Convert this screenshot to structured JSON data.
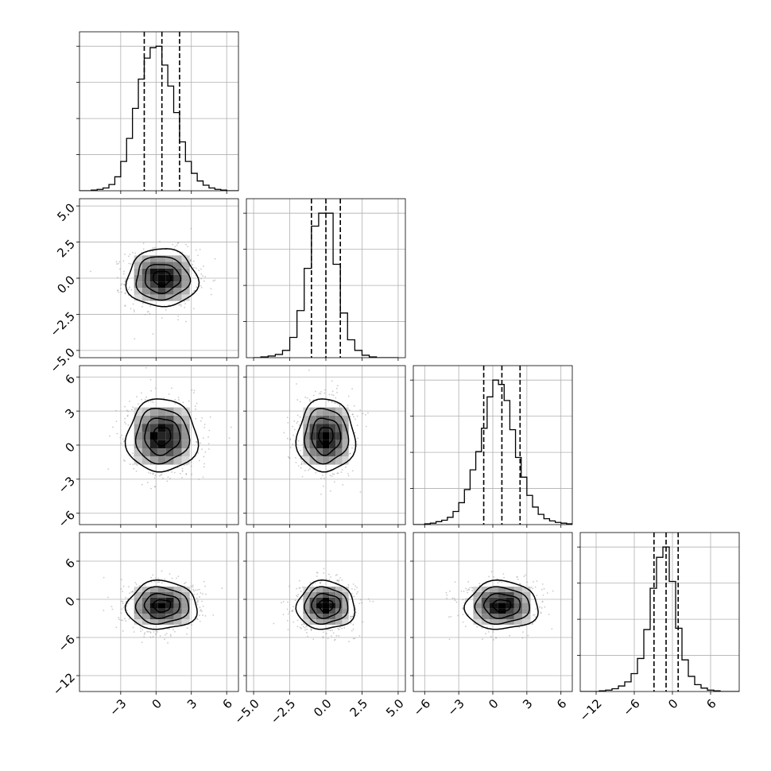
{
  "chart_data": {
    "type": "corner",
    "grid": true,
    "colors": {
      "hist": "#000000",
      "contour": "#000000",
      "points": "#8a8a8a",
      "grid": "#b0b0b0",
      "quantile_line": "#000000"
    },
    "parameters": [
      {
        "index": 0,
        "range": [
          -6.5,
          7.0
        ],
        "ticks": [
          -3,
          0,
          3,
          6
        ],
        "tick_labels": [
          "−3",
          "0",
          "3",
          "6"
        ],
        "mean": 0.5,
        "sd": 1.5,
        "quantiles": [
          -1.0,
          0.5,
          2.0
        ]
      },
      {
        "index": 1,
        "range": [
          -5.5,
          5.5
        ],
        "ticks": [
          -5.0,
          -2.5,
          0.0,
          2.5,
          5.0
        ],
        "tick_labels": [
          "−5.0",
          "−2.5",
          "0.0",
          "2.5",
          "5.0"
        ],
        "mean": 0.0,
        "sd": 1.0,
        "quantiles": [
          -1.0,
          0.0,
          1.0
        ]
      },
      {
        "index": 2,
        "range": [
          -7.0,
          7.0
        ],
        "ticks": [
          -6,
          -3,
          0,
          3,
          6
        ],
        "tick_labels": [
          "−6",
          "−3",
          "0",
          "3",
          "6"
        ],
        "mean": 0.8,
        "sd": 1.6,
        "quantiles": [
          -0.8,
          0.8,
          2.4
        ]
      },
      {
        "index": 3,
        "range": [
          -14.5,
          10.5
        ],
        "ticks": [
          -12,
          -6,
          0,
          6
        ],
        "tick_labels": [
          "−12",
          "−6",
          "0",
          "6"
        ],
        "mean": -1.0,
        "sd": 1.9,
        "quantiles": [
          -2.9,
          -1.0,
          0.9
        ]
      }
    ],
    "histograms": [
      {
        "param": 0,
        "bins": [
          -6.5,
          -6.0,
          -5.5,
          -5.0,
          -4.5,
          -4.0,
          -3.5,
          -3.0,
          -2.5,
          -2.0,
          -1.5,
          -1.0,
          -0.5,
          0.0,
          0.5,
          1.0,
          1.5,
          2.0,
          2.5,
          3.0,
          3.5,
          4.0,
          4.5,
          5.0,
          5.5,
          6.0,
          6.5,
          7.0
        ],
        "counts": [
          0,
          0,
          1,
          2,
          4,
          9,
          20,
          42,
          75,
          118,
          160,
          190,
          205,
          207,
          180,
          150,
          112,
          70,
          42,
          25,
          14,
          8,
          4,
          2,
          1,
          0,
          0
        ]
      },
      {
        "param": 1,
        "bins": [
          -5.0,
          -4.5,
          -4.0,
          -3.5,
          -3.0,
          -2.5,
          -2.0,
          -1.5,
          -1.0,
          -0.5,
          0.0,
          0.5,
          1.0,
          1.5,
          2.0,
          2.5,
          3.0,
          3.5,
          4.0,
          4.5,
          5.0
        ],
        "counts": [
          0,
          1,
          2,
          4,
          9,
          25,
          58,
          110,
          162,
          178,
          178,
          115,
          55,
          22,
          9,
          3,
          1,
          0,
          0,
          0
        ]
      },
      {
        "param": 2,
        "bins": [
          -7.0,
          -6.5,
          -6.0,
          -5.5,
          -5.0,
          -4.5,
          -4.0,
          -3.5,
          -3.0,
          -2.5,
          -2.0,
          -1.5,
          -1.0,
          -0.5,
          0.0,
          0.5,
          1.0,
          1.5,
          2.0,
          2.5,
          3.0,
          3.5,
          4.0,
          4.5,
          5.0,
          5.5,
          6.0,
          6.5,
          7.0
        ],
        "counts": [
          0,
          0,
          1,
          2,
          4,
          6,
          10,
          18,
          30,
          48,
          75,
          100,
          132,
          175,
          198,
          192,
          170,
          130,
          92,
          65,
          40,
          24,
          14,
          8,
          5,
          3,
          2,
          1
        ]
      },
      {
        "param": 3,
        "bins": [
          -14.5,
          -13.5,
          -12.5,
          -11.5,
          -10.5,
          -9.5,
          -8.5,
          -7.5,
          -6.5,
          -5.5,
          -4.5,
          -3.5,
          -2.5,
          -1.5,
          -0.5,
          0.5,
          1.5,
          2.5,
          3.5,
          4.5,
          5.5,
          6.5,
          7.5,
          8.5,
          9.5,
          10.5
        ],
        "counts": [
          0,
          0,
          0,
          1,
          2,
          4,
          8,
          14,
          26,
          48,
          90,
          150,
          195,
          210,
          160,
          92,
          46,
          22,
          10,
          5,
          2,
          1,
          0,
          0,
          0
        ]
      }
    ],
    "pairs": [
      {
        "x": 0,
        "y": 1,
        "rho": 0.0
      },
      {
        "x": 0,
        "y": 2,
        "rho": 0.0
      },
      {
        "x": 1,
        "y": 2,
        "rho": 0.0
      },
      {
        "x": 0,
        "y": 3,
        "rho": 0.0
      },
      {
        "x": 1,
        "y": 3,
        "rho": 0.0
      },
      {
        "x": 2,
        "y": 3,
        "rho": 0.0
      }
    ],
    "contour_levels_sigma": [
      0.5,
      1.0,
      1.5,
      2.0
    ]
  }
}
